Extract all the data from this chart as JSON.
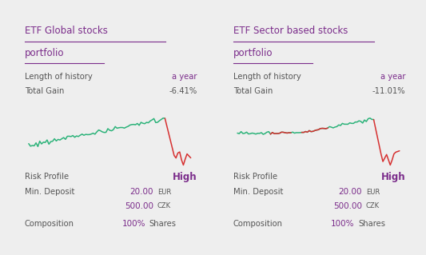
{
  "bg_color": "#eeeeee",
  "card_color": "#ffffff",
  "purple_color": "#7b2d8b",
  "dark_text": "#555555",
  "red_color": "#d63030",
  "green_color": "#2db37a",
  "cards": [
    {
      "title_line1": "ETF Global stocks",
      "title_line2": "portfolio",
      "history_label": "Length of history",
      "history_value": "a year",
      "gain_label": "Total Gain",
      "gain_value": "-6.41%",
      "risk_label": "Risk Profile",
      "risk_value": "High",
      "deposit_label": "Min. Deposit",
      "deposit_value1": "20.00",
      "deposit_unit1": "EUR",
      "deposit_value2": "500.00",
      "deposit_unit2": "CZK",
      "comp_label": "Composition",
      "comp_value": "100%",
      "comp_unit": "Shares"
    },
    {
      "title_line1": "ETF Sector based stocks",
      "title_line2": "portfolio",
      "history_label": "Length of history",
      "history_value": "a year",
      "gain_label": "Total Gain",
      "gain_value": "-11.01%",
      "risk_label": "Risk Profile",
      "risk_value": "High",
      "deposit_label": "Min. Deposit",
      "deposit_value1": "20.00",
      "deposit_unit1": "EUR",
      "deposit_value2": "500.00",
      "deposit_unit2": "CZK",
      "comp_label": "Composition",
      "comp_value": "100%",
      "comp_unit": "Shares"
    }
  ]
}
